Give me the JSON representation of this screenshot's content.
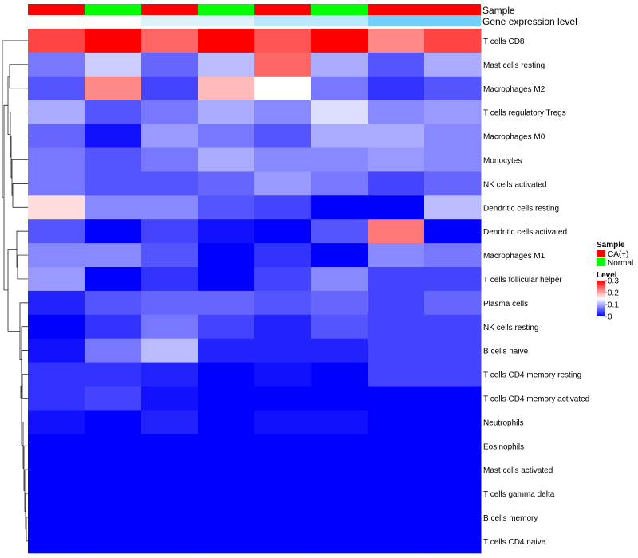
{
  "chart_data": {
    "type": "heatmap",
    "annotation_labels": {
      "sample": "Sample",
      "gene_expression": "Gene expression level"
    },
    "columns": [
      {
        "sample": "CA(+)",
        "gene_expression": 0.0
      },
      {
        "sample": "Normal",
        "gene_expression": 0.0
      },
      {
        "sample": "CA(+)",
        "gene_expression": 0.2
      },
      {
        "sample": "Normal",
        "gene_expression": 0.2
      },
      {
        "sample": "CA(+)",
        "gene_expression": 0.4
      },
      {
        "sample": "Normal",
        "gene_expression": 0.4
      },
      {
        "sample": "CA(+)",
        "gene_expression": 0.8
      },
      {
        "sample": "CA(+)",
        "gene_expression": 0.8
      }
    ],
    "rows": [
      "T cells CD8",
      "Mast cells resting",
      "Macrophages M2",
      "T cells regulatory  Tregs",
      "Macrophages M0",
      "Monocytes",
      "NK cells activated",
      "Dendritic cells resting",
      "Dendritic cells activated",
      "Macrophages M1",
      "T cells follicular helper",
      "Plasma cells",
      "NK cells resting",
      "B cells naive",
      "T cells CD4 memory resting",
      "T cells CD4 memory activated",
      "Neutrophils",
      "Eosinophils",
      "Mast cells activated",
      "T cells gamma delta",
      "B cells memory",
      "T cells CD4 naive"
    ],
    "values": [
      [
        0.26,
        0.3,
        0.24,
        0.3,
        0.25,
        0.3,
        0.22,
        0.26
      ],
      [
        0.07,
        0.12,
        0.06,
        0.11,
        0.24,
        0.1,
        0.05,
        0.1
      ],
      [
        0.05,
        0.22,
        0.04,
        0.19,
        0.15,
        0.07,
        0.03,
        0.05
      ],
      [
        0.1,
        0.05,
        0.07,
        0.1,
        0.08,
        0.13,
        0.08,
        0.09
      ],
      [
        0.06,
        0.01,
        0.09,
        0.07,
        0.05,
        0.1,
        0.1,
        0.08
      ],
      [
        0.07,
        0.05,
        0.07,
        0.1,
        0.08,
        0.08,
        0.09,
        0.08
      ],
      [
        0.07,
        0.05,
        0.05,
        0.06,
        0.09,
        0.07,
        0.04,
        0.06
      ],
      [
        0.17,
        0.08,
        0.08,
        0.05,
        0.04,
        0.0,
        0.0,
        0.11
      ],
      [
        0.05,
        0.0,
        0.04,
        0.01,
        0.0,
        0.05,
        0.23,
        0.0
      ],
      [
        0.08,
        0.08,
        0.05,
        0.0,
        0.03,
        0.0,
        0.08,
        0.07
      ],
      [
        0.09,
        0.0,
        0.03,
        0.0,
        0.04,
        0.08,
        0.04,
        0.04
      ],
      [
        0.02,
        0.05,
        0.06,
        0.06,
        0.05,
        0.06,
        0.04,
        0.06
      ],
      [
        0.0,
        0.03,
        0.07,
        0.04,
        0.02,
        0.05,
        0.04,
        0.04
      ],
      [
        0.01,
        0.07,
        0.11,
        0.02,
        0.02,
        0.02,
        0.04,
        0.04
      ],
      [
        0.03,
        0.03,
        0.02,
        0.0,
        0.01,
        0.0,
        0.04,
        0.04
      ],
      [
        0.03,
        0.04,
        0.01,
        0.0,
        0.0,
        0.0,
        0.0,
        0.0
      ],
      [
        0.01,
        0.0,
        0.02,
        0.0,
        0.01,
        0.01,
        0.0,
        0.0
      ],
      [
        0.0,
        0.0,
        0.0,
        0.0,
        0.0,
        0.0,
        0.0,
        0.0
      ],
      [
        0.0,
        0.0,
        0.0,
        0.0,
        0.0,
        0.0,
        0.0,
        0.0
      ],
      [
        0.0,
        0.0,
        0.0,
        0.0,
        0.0,
        0.0,
        0.0,
        0.0
      ],
      [
        0.0,
        0.0,
        0.0,
        0.0,
        0.0,
        0.0,
        0.0,
        0.0
      ],
      [
        0.0,
        0.0,
        0.0,
        0.0,
        0.0,
        0.0,
        0.0,
        0.0
      ]
    ],
    "color_scale": {
      "low": "#0000ff",
      "mid": "#ffffff",
      "high": "#ff0000",
      "min": 0,
      "mid_value": 0.15,
      "max": 0.3
    },
    "annotation_colors": {
      "sample": {
        "CA(+)": "#ff0000",
        "Normal": "#00ff00"
      },
      "gene_expression_low": "#ffffff",
      "gene_expression_high": "#4fc3f7"
    },
    "legend": {
      "sample_title": "Sample",
      "sample_items": [
        "CA(+)",
        "Normal"
      ],
      "level_title": "Level",
      "level_ticks": [
        "0.3",
        "0.2",
        "0.1",
        "0"
      ],
      "level_tick_values": [
        0.3,
        0.2,
        0.1,
        0
      ],
      "position": "right"
    },
    "row_dendrogram": true
  }
}
